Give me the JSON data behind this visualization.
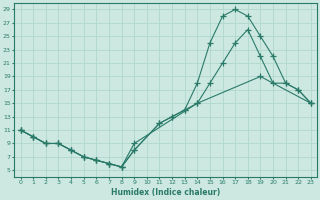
{
  "xlabel": "Humidex (Indice chaleur)",
  "ylabel": "",
  "xlim": [
    -0.5,
    23.5
  ],
  "ylim": [
    4,
    30
  ],
  "yticks": [
    5,
    7,
    9,
    11,
    13,
    15,
    17,
    19,
    21,
    23,
    25,
    27,
    29
  ],
  "xticks": [
    0,
    1,
    2,
    3,
    4,
    5,
    6,
    7,
    8,
    9,
    10,
    11,
    12,
    13,
    14,
    15,
    16,
    17,
    18,
    19,
    20,
    21,
    22,
    23
  ],
  "bg_color": "#cde8e0",
  "grid_color": "#b0d8ce",
  "line_color": "#2a7a6a",
  "line1_x": [
    0,
    1,
    2,
    3,
    4,
    5,
    6,
    7,
    8,
    9,
    14,
    19,
    23
  ],
  "line1_y": [
    11,
    10,
    9,
    9,
    8,
    7,
    6.5,
    6,
    5.5,
    9,
    15,
    19,
    15
  ],
  "line2_x": [
    0,
    1,
    2,
    3,
    4,
    5,
    6,
    7,
    8,
    9,
    11,
    12,
    13,
    14,
    15,
    16,
    17,
    18,
    19,
    20,
    21,
    22,
    23
  ],
  "line2_y": [
    11,
    10,
    9,
    9,
    8,
    7,
    6.5,
    6,
    5.5,
    8,
    12,
    13,
    14,
    15,
    18,
    21,
    24,
    26,
    22,
    18,
    18,
    17,
    15
  ],
  "line3_x": [
    0,
    1,
    2,
    3,
    4,
    5,
    6,
    7,
    8,
    9,
    11,
    12,
    13,
    14,
    15,
    16,
    17,
    18,
    19,
    20,
    21,
    22,
    23
  ],
  "line3_y": [
    11,
    10,
    9,
    9,
    8,
    7,
    6.5,
    6,
    5.5,
    8,
    12,
    13,
    14,
    18,
    24,
    28,
    29,
    28,
    25,
    22,
    18,
    17,
    15
  ]
}
